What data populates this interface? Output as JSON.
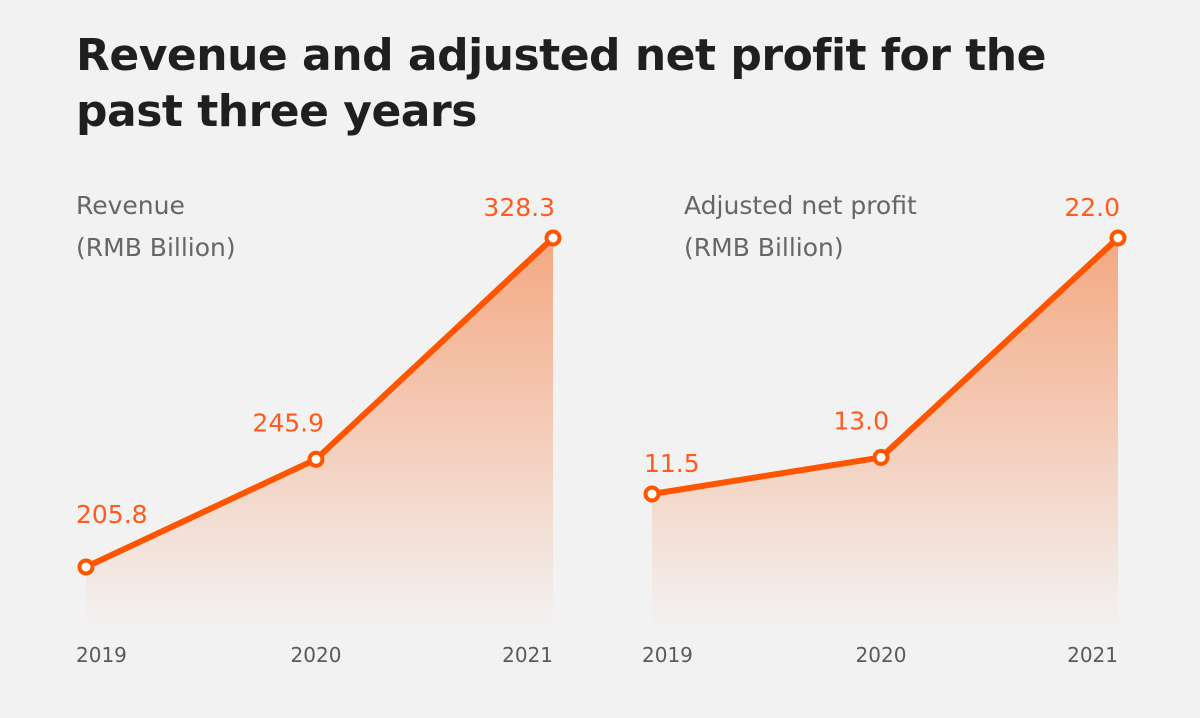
{
  "title": "Revenue and adjusted net profit for the past three years",
  "colors": {
    "line": "#ff5500",
    "label": "#ff5a1f",
    "fill_top": "#f5a47c",
    "background": "#f2f2f2"
  },
  "chart_data": [
    {
      "type": "area",
      "title": "Revenue",
      "subtitle_line1": "Revenue",
      "subtitle_line2": "(RMB Billion)",
      "unit": "RMB Billion",
      "categories": [
        "2019",
        "2020",
        "2021"
      ],
      "values": [
        205.8,
        245.9,
        328.3
      ],
      "labels": [
        "205.8",
        "245.9",
        "328.3"
      ],
      "grid": false,
      "legend": "none"
    },
    {
      "type": "area",
      "title": "Adjusted net profit",
      "subtitle_line1": "Adjusted net profit",
      "subtitle_line2": "(RMB Billion)",
      "unit": "RMB Billion",
      "categories": [
        "2019",
        "2020",
        "2021"
      ],
      "values": [
        11.5,
        13.0,
        22.0
      ],
      "labels": [
        "11.5",
        "13.0",
        "22.0"
      ],
      "grid": false,
      "legend": "none"
    }
  ]
}
